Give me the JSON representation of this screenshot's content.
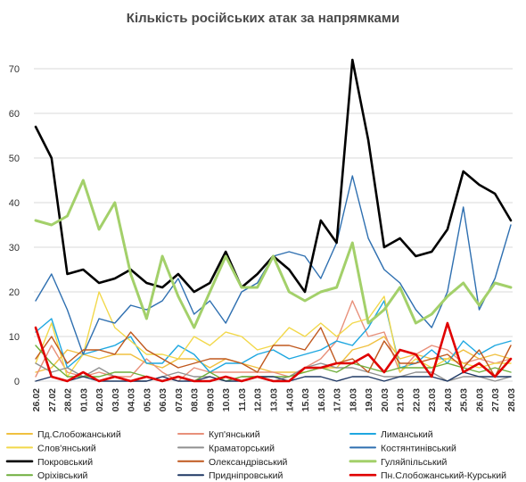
{
  "chart_data": {
    "type": "line",
    "title": "Кількість російських атак за напрямками",
    "xlabel": "",
    "ylabel": "",
    "ylim": [
      0,
      75
    ],
    "yticks": [
      0,
      10,
      20,
      30,
      40,
      50,
      60,
      70
    ],
    "grid": "horizontal",
    "legend": "bottom",
    "x": [
      "26.02",
      "27.02",
      "28.02",
      "01.03",
      "02.03",
      "03.03",
      "04.03",
      "05.03",
      "06.03",
      "07.03",
      "08.03",
      "09.03",
      "10.03",
      "11.03",
      "12.03",
      "13.03",
      "14.03",
      "15.03",
      "16.03",
      "17.03",
      "18.03",
      "19.03",
      "20.03",
      "21.03",
      "22.03",
      "23.03",
      "24.03",
      "25.03",
      "26.03",
      "27.03",
      "28.03"
    ],
    "series": [
      {
        "name": "Пд.Слобожанський",
        "color": "#f0c040",
        "width": 1.4,
        "values": [
          2,
          3,
          7,
          6,
          5,
          6,
          6,
          4,
          3,
          5,
          5,
          3,
          5,
          4,
          3,
          2,
          2,
          2,
          3,
          3,
          7,
          8,
          10,
          5,
          6,
          5,
          5,
          7,
          5,
          6,
          5
        ]
      },
      {
        "name": "Куп'янський",
        "color": "#e8907a",
        "width": 1.4,
        "values": [
          1,
          8,
          2,
          1,
          2,
          1,
          1,
          5,
          2,
          0,
          3,
          2,
          2,
          2,
          2,
          2,
          1,
          3,
          5,
          9,
          18,
          10,
          11,
          2,
          6,
          8,
          7,
          4,
          5,
          4,
          5
        ]
      },
      {
        "name": "Лиманський",
        "color": "#1ea7e0",
        "width": 1.4,
        "values": [
          11,
          14,
          3,
          6,
          7,
          8,
          10,
          4,
          4,
          8,
          6,
          2,
          4,
          4,
          6,
          7,
          5,
          6,
          7,
          9,
          8,
          12,
          18,
          3,
          4,
          7,
          4,
          9,
          6,
          8,
          9
        ]
      },
      {
        "name": "Слов'янський",
        "color": "#f2d84a",
        "width": 1.4,
        "values": [
          4,
          13,
          1,
          6,
          20,
          12,
          9,
          6,
          6,
          5,
          10,
          8,
          11,
          10,
          7,
          8,
          12,
          10,
          13,
          10,
          13,
          14,
          19,
          2,
          5,
          3,
          5,
          4,
          3,
          4,
          4
        ]
      },
      {
        "name": "Краматорський",
        "color": "#909090",
        "width": 1.4,
        "values": [
          4,
          2,
          3,
          1,
          3,
          1,
          0,
          0,
          1,
          2,
          1,
          1,
          0,
          1,
          1,
          0,
          1,
          3,
          4,
          3,
          3,
          2,
          1,
          1,
          2,
          2,
          0,
          1,
          1,
          0,
          1
        ]
      },
      {
        "name": "Костянтинівський",
        "color": "#2e6fb0",
        "width": 1.4,
        "values": [
          18,
          24,
          16,
          6,
          14,
          13,
          17,
          16,
          18,
          23,
          15,
          18,
          13,
          20,
          22,
          28,
          29,
          28,
          23,
          31,
          46,
          32,
          25,
          22,
          16,
          12,
          20,
          39,
          16,
          23,
          35
        ]
      },
      {
        "name": "Покровський",
        "color": "#000000",
        "width": 2.6,
        "values": [
          57,
          50,
          24,
          25,
          22,
          23,
          25,
          22,
          21,
          24,
          20,
          22,
          29,
          21,
          24,
          28,
          25,
          20,
          36,
          31,
          72,
          54,
          30,
          32,
          28,
          29,
          34,
          47,
          44,
          42,
          36
        ]
      },
      {
        "name": "Олександрівський",
        "color": "#c0581e",
        "width": 1.4,
        "values": [
          5,
          10,
          4,
          7,
          7,
          6,
          11,
          7,
          5,
          3,
          4,
          5,
          5,
          4,
          2,
          8,
          8,
          7,
          12,
          4,
          5,
          2,
          9,
          4,
          4,
          5,
          6,
          3,
          7,
          1,
          8
        ]
      },
      {
        "name": "Гуляйпільський",
        "color": "#a3d06a",
        "width": 3.0,
        "values": [
          36,
          35,
          37,
          45,
          34,
          40,
          24,
          14,
          28,
          19,
          12,
          20,
          28,
          21,
          21,
          28,
          20,
          18,
          20,
          21,
          31,
          13,
          16,
          21,
          13,
          15,
          19,
          22,
          17,
          22,
          21
        ]
      },
      {
        "name": "Оріхівський",
        "color": "#6fae3c",
        "width": 1.4,
        "values": [
          8,
          4,
          1,
          1,
          1,
          2,
          2,
          1,
          0,
          1,
          0,
          2,
          0,
          1,
          1,
          1,
          1,
          2,
          3,
          2,
          4,
          3,
          2,
          3,
          3,
          3,
          4,
          3,
          2,
          3,
          2
        ]
      },
      {
        "name": "Придніпровський",
        "color": "#1f3864",
        "width": 1.4,
        "values": [
          0,
          1,
          0,
          1,
          0,
          0,
          0,
          0,
          1,
          0,
          0,
          1,
          0,
          0,
          1,
          1,
          0,
          1,
          1,
          0,
          1,
          1,
          0,
          1,
          1,
          1,
          0,
          2,
          1,
          1,
          1
        ]
      },
      {
        "name": "Пн.Слобожанський-Курський",
        "color": "#e00000",
        "width": 2.6,
        "values": [
          12,
          1,
          0,
          2,
          0,
          1,
          0,
          1,
          0,
          1,
          0,
          0,
          1,
          0,
          1,
          0,
          0,
          3,
          3,
          4,
          4,
          6,
          2,
          7,
          6,
          1,
          13,
          2,
          4,
          1,
          5
        ]
      }
    ]
  }
}
